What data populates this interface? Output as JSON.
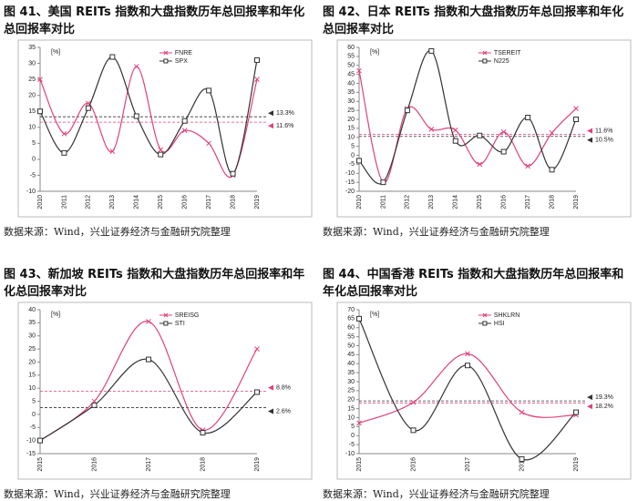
{
  "chart_data": [
    {
      "type": "line",
      "title": "图 41、美国 REITs 指数和大盘指数历年总回报率和年化总回报率对比",
      "source": "数据来源：Wind，兴业证券经济与金融研究院整理",
      "unit": "[%]",
      "categories": [
        "2010",
        "2011",
        "2012",
        "2013",
        "2014",
        "2015",
        "2016",
        "2017",
        "2018",
        "2019"
      ],
      "series": [
        {
          "name": "FNRE",
          "color": "#e2407c",
          "marker": "x",
          "values": [
            25,
            8,
            17.5,
            2.5,
            29,
            3,
            9,
            5,
            -5,
            25
          ]
        },
        {
          "name": "SPX",
          "color": "#333333",
          "marker": "square",
          "values": [
            15,
            2,
            16,
            32,
            13.5,
            1.5,
            12,
            21.5,
            -4.5,
            31
          ]
        }
      ],
      "ref_lines": [
        {
          "value": 13.3,
          "label": "13.3%",
          "color": "#333333"
        },
        {
          "value": 11.6,
          "label": "11.6%",
          "color": "#e2407c"
        }
      ],
      "ylim": [
        -10,
        35
      ],
      "yticks": [
        -10,
        -5,
        0,
        5,
        10,
        15,
        20,
        25,
        30,
        35
      ]
    },
    {
      "type": "line",
      "title": "图 42、日本 REITs 指数和大盘指数历年总回报率和年化总回报率对比",
      "source": "数据来源：Wind，兴业证券经济与金融研究院整理",
      "unit": "[%]",
      "categories": [
        "2010",
        "2011",
        "2012",
        "2013",
        "2014",
        "2015",
        "2016",
        "2017",
        "2018",
        "2019"
      ],
      "series": [
        {
          "name": "TSEREIT",
          "color": "#e2407c",
          "marker": "x",
          "values": [
            47,
            -15,
            26,
            14.5,
            14,
            -5,
            13,
            -6,
            12.5,
            26
          ]
        },
        {
          "name": "N225",
          "color": "#333333",
          "marker": "square",
          "values": [
            -3,
            -15,
            25,
            58,
            8,
            11,
            2,
            21,
            -8,
            20
          ]
        }
      ],
      "ref_lines": [
        {
          "value": 11.6,
          "label": "11.6%",
          "color": "#e2407c"
        },
        {
          "value": 10.5,
          "label": "10.5%",
          "color": "#333333"
        }
      ],
      "ylim": [
        -20,
        60
      ],
      "yticks": [
        -20,
        -15,
        -10,
        -5,
        0,
        5,
        10,
        15,
        20,
        25,
        30,
        35,
        40,
        45,
        50,
        55,
        60
      ]
    },
    {
      "type": "line",
      "title": "图 43、新加坡 REITs 指数和大盘指数历年总回报率和年化总回报率对比",
      "source": "数据来源：Wind，兴业证券经济与金融研究院整理",
      "unit": "[%]",
      "categories": [
        "2015",
        "2016",
        "2017",
        "2018",
        "2019"
      ],
      "series": [
        {
          "name": "SREISG",
          "color": "#e2407c",
          "marker": "x",
          "values": [
            -10,
            5,
            35.5,
            -6,
            25
          ]
        },
        {
          "name": "STI",
          "color": "#333333",
          "marker": "square",
          "values": [
            -10,
            3.5,
            21,
            -7,
            8.5
          ]
        }
      ],
      "ref_lines": [
        {
          "value": 8.8,
          "label": "8.8%",
          "color": "#e2407c"
        },
        {
          "value": 2.6,
          "label": "2.6%",
          "color": "#333333"
        }
      ],
      "ylim": [
        -15,
        40
      ],
      "yticks": [
        -15,
        -10,
        -5,
        0,
        5,
        10,
        15,
        20,
        25,
        30,
        35,
        40
      ]
    },
    {
      "type": "line",
      "title": "图 44、中国香港 REITs 指数和大盘指数历年总回报率和年化总回报率对比",
      "source": "数据来源：Wind，兴业证券经济与金融研究院整理",
      "unit": "[%]",
      "categories": [
        "2015",
        "2016",
        "2017",
        "2018",
        "2019"
      ],
      "series": [
        {
          "name": "SHKLRN",
          "color": "#e2407c",
          "marker": "x",
          "values": [
            7,
            18.5,
            45.5,
            13,
            11.5
          ]
        },
        {
          "name": "HSI",
          "color": "#333333",
          "marker": "square",
          "values": [
            65,
            3,
            39,
            -13,
            13
          ]
        }
      ],
      "ref_lines": [
        {
          "value": 19.3,
          "label": "19.3%",
          "color": "#333333"
        },
        {
          "value": 18.2,
          "label": "18.2%",
          "color": "#e2407c"
        }
      ],
      "ylim": [
        -10,
        70
      ],
      "yticks": [
        -10,
        -5,
        0,
        5,
        10,
        15,
        20,
        25,
        30,
        35,
        40,
        45,
        50,
        55,
        60,
        65,
        70
      ]
    }
  ]
}
